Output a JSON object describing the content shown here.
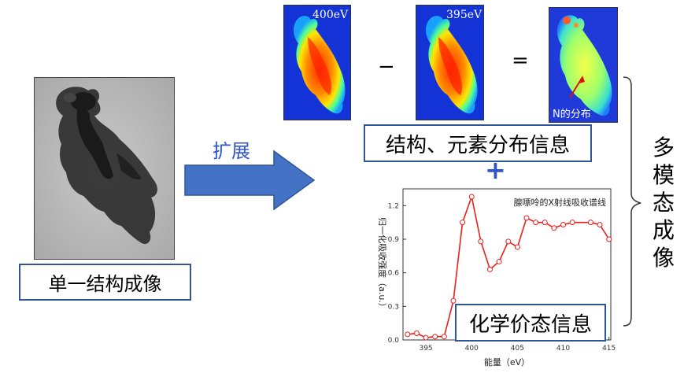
{
  "tem": {
    "label": "单一结构成像"
  },
  "arrow": {
    "label": "扩展"
  },
  "maps": {
    "first_energy": "400eV",
    "second_energy": "395eV",
    "minus": "−",
    "equals": "=",
    "result_annotation": "N的分布"
  },
  "structure_box": {
    "label": "结构、元素分布信息"
  },
  "plus": "+",
  "chemical_box": {
    "label": "化学价态信息"
  },
  "right_label": [
    "多",
    "模",
    "态",
    "成",
    "像"
  ],
  "chart_data": {
    "type": "line",
    "title": "腺嘌呤的X射线吸收谱线",
    "xlabel": "能量（eV）",
    "ylabel": "归一化吸收强度（a.u.）",
    "xlim": [
      392.5,
      415.2
    ],
    "ylim": [
      0,
      1.35
    ],
    "xticks": [
      395,
      400,
      405,
      410,
      415
    ],
    "yticks": [
      0.0,
      0.3,
      0.6,
      0.9,
      1.2
    ],
    "ytick_labels": [
      "0.0",
      "0.3",
      "0.6",
      "0.9",
      "1.2"
    ],
    "color": "#e8201a",
    "grid": false,
    "x": [
      393,
      394,
      395,
      396,
      397,
      398,
      399,
      400,
      401,
      402,
      403,
      404,
      405,
      406,
      407,
      408,
      409,
      410,
      411,
      413,
      414,
      415
    ],
    "y": [
      0.05,
      0.06,
      0.02,
      0.03,
      0.03,
      0.35,
      1.05,
      1.28,
      0.88,
      0.63,
      0.7,
      0.88,
      0.83,
      1.09,
      1.05,
      1.05,
      1.0,
      1.03,
      1.05,
      1.05,
      1.03,
      0.9
    ]
  }
}
